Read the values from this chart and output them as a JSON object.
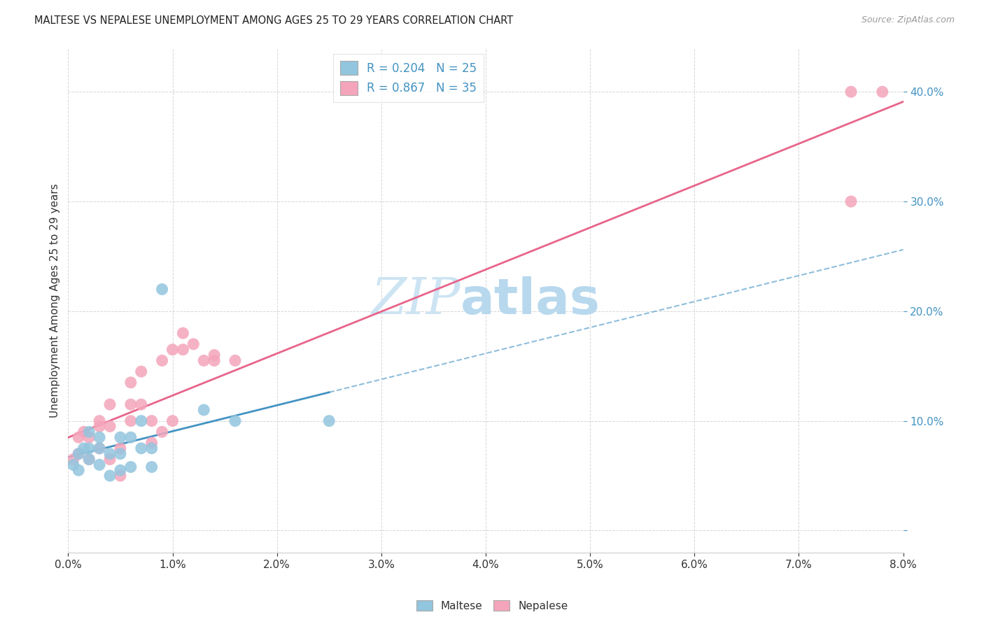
{
  "title": "MALTESE VS NEPALESE UNEMPLOYMENT AMONG AGES 25 TO 29 YEARS CORRELATION CHART",
  "source": "Source: ZipAtlas.com",
  "ylabel": "Unemployment Among Ages 25 to 29 years",
  "legend_maltese": "Maltese",
  "legend_nepalese": "Nepalese",
  "r_maltese": 0.204,
  "n_maltese": 25,
  "r_nepalese": 0.867,
  "n_nepalese": 35,
  "blue_color": "#92c5de",
  "pink_color": "#f4a5bb",
  "blue_line": "#4393c3",
  "pink_line": "#e8648a",
  "watermark_zip": "ZIP",
  "watermark_atlas": "atlas",
  "xlim": [
    0.0,
    0.08
  ],
  "ylim": [
    -0.02,
    0.44
  ],
  "maltese_x": [
    0.0005,
    0.001,
    0.001,
    0.0015,
    0.002,
    0.002,
    0.002,
    0.003,
    0.003,
    0.003,
    0.004,
    0.004,
    0.005,
    0.005,
    0.005,
    0.006,
    0.006,
    0.007,
    0.007,
    0.008,
    0.008,
    0.009,
    0.013,
    0.016,
    0.025
  ],
  "maltese_y": [
    0.06,
    0.055,
    0.07,
    0.075,
    0.065,
    0.075,
    0.09,
    0.06,
    0.075,
    0.085,
    0.05,
    0.07,
    0.055,
    0.07,
    0.085,
    0.058,
    0.085,
    0.075,
    0.1,
    0.058,
    0.075,
    0.22,
    0.11,
    0.1,
    0.1
  ],
  "nepalese_x": [
    0.0005,
    0.001,
    0.001,
    0.0015,
    0.002,
    0.002,
    0.003,
    0.003,
    0.003,
    0.004,
    0.004,
    0.004,
    0.005,
    0.005,
    0.006,
    0.006,
    0.006,
    0.007,
    0.007,
    0.008,
    0.008,
    0.009,
    0.009,
    0.01,
    0.01,
    0.011,
    0.011,
    0.012,
    0.013,
    0.014,
    0.014,
    0.016,
    0.075,
    0.075,
    0.078
  ],
  "nepalese_y": [
    0.065,
    0.07,
    0.085,
    0.09,
    0.065,
    0.085,
    0.075,
    0.095,
    0.1,
    0.065,
    0.095,
    0.115,
    0.05,
    0.075,
    0.1,
    0.115,
    0.135,
    0.115,
    0.145,
    0.08,
    0.1,
    0.09,
    0.155,
    0.1,
    0.165,
    0.165,
    0.18,
    0.17,
    0.155,
    0.155,
    0.16,
    0.155,
    0.3,
    0.4,
    0.4
  ],
  "maltese_line_solid_xend": 0.025,
  "maltese_line_xstart": 0.0,
  "maltese_line_xend": 0.08,
  "nepalese_line_xstart": 0.0,
  "nepalese_line_xend": 0.08
}
